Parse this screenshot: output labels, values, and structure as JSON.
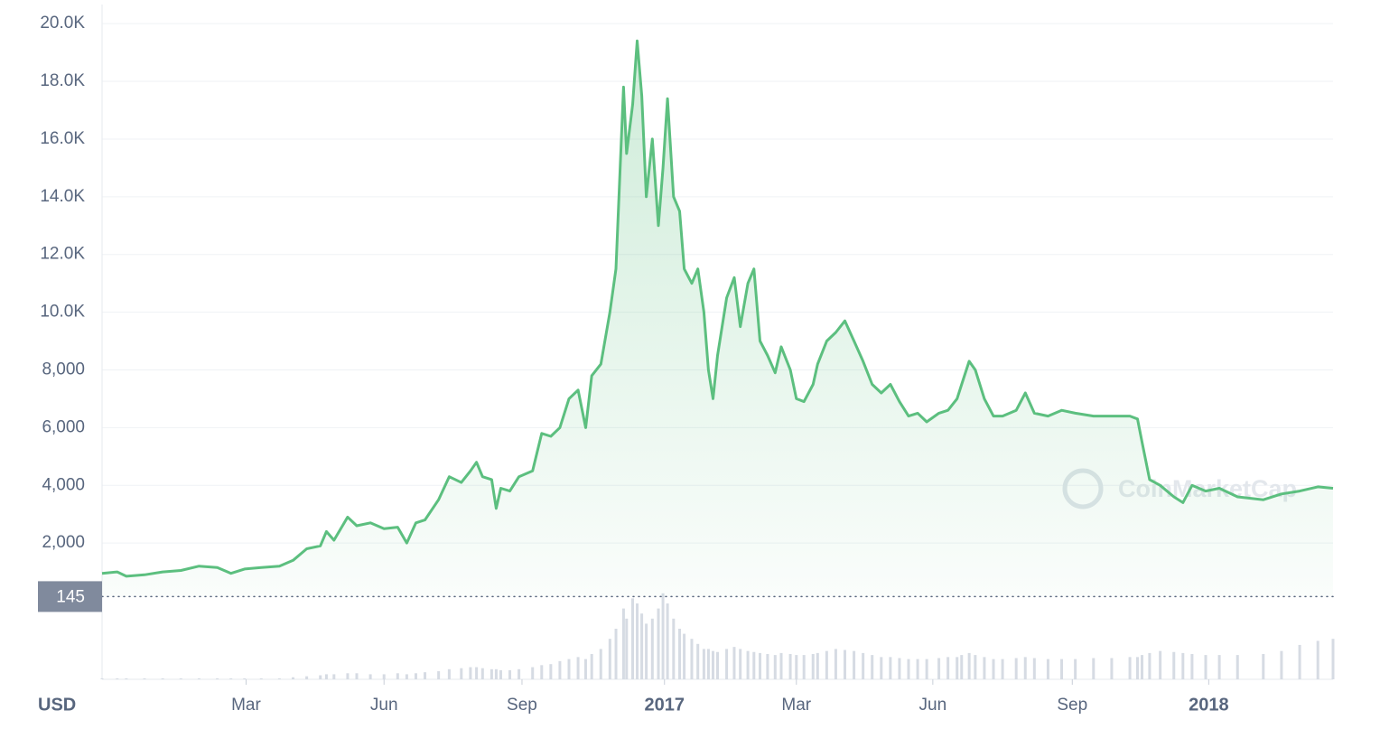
{
  "chart_data": {
    "type": "line",
    "currency_label": "USD",
    "watermark": "CoinMarketCap",
    "color": "#5cbf7f",
    "x": [
      0,
      10,
      16,
      28,
      40,
      52,
      64,
      76,
      85,
      94,
      105,
      117,
      126,
      135,
      144,
      148,
      153,
      162,
      168,
      177,
      186,
      195,
      201,
      207,
      213,
      222,
      229,
      237,
      243,
      247,
      251,
      257,
      260,
      263,
      269,
      275,
      284,
      290,
      296,
      302,
      308,
      314,
      319,
      323,
      329,
      335,
      339,
      344,
      346,
      350,
      353,
      356,
      359,
      363,
      367,
      370,
      373,
      377,
      381,
      384,
      389,
      393,
      397,
      400,
      403,
      406,
      412,
      417,
      421,
      426,
      430,
      434,
      439,
      444,
      448,
      454,
      458,
      463,
      469,
      472,
      478,
      484,
      490,
      496,
      502,
      508,
      514,
      520,
      526,
      532,
      538,
      544,
      552,
      558,
      564,
      567,
      572,
      576,
      582,
      588,
      594,
      603,
      609,
      615,
      624,
      633,
      642,
      654,
      666,
      678,
      683,
      686,
      691,
      698,
      707,
      713,
      719,
      728,
      737,
      749,
      766,
      778,
      790,
      802,
      812
    ],
    "values": [
      950,
      1000,
      850,
      900,
      1000,
      1050,
      1200,
      1150,
      950,
      1100,
      1150,
      1200,
      1400,
      1800,
      1900,
      2400,
      2100,
      2900,
      2600,
      2700,
      2500,
      2550,
      2000,
      2700,
      2800,
      3500,
      4300,
      4100,
      4500,
      4800,
      4300,
      4200,
      3200,
      3900,
      3800,
      4300,
      4500,
      5800,
      5700,
      6000,
      7000,
      7300,
      6000,
      7800,
      8200,
      10000,
      11500,
      17800,
      15500,
      17200,
      19400,
      17500,
      14000,
      16000,
      13000,
      15000,
      17400,
      14000,
      13500,
      11500,
      11000,
      11500,
      10000,
      8000,
      7000,
      8500,
      10500,
      11200,
      9500,
      11000,
      11500,
      9000,
      8500,
      7900,
      8800,
      8000,
      7000,
      6900,
      7500,
      8200,
      9000,
      9300,
      9700,
      9000,
      8300,
      7500,
      7200,
      7500,
      6900,
      6400,
      6500,
      6200,
      6500,
      6600,
      7000,
      7500,
      8300,
      8000,
      7000,
      6400,
      6400,
      6600,
      7200,
      6500,
      6400,
      6600,
      6500,
      6400,
      6400,
      6400,
      6300,
      5500,
      4200,
      4000,
      3600,
      3400,
      4000,
      3800,
      3900,
      3600,
      3500,
      3700,
      3800,
      3950,
      3900
    ],
    "volume": [
      1,
      1,
      1,
      1,
      1,
      1,
      1,
      1,
      1,
      1,
      1,
      1,
      2,
      3,
      4,
      5,
      5,
      6,
      6,
      5,
      5,
      6,
      5,
      6,
      7,
      8,
      10,
      11,
      12,
      12,
      11,
      10,
      10,
      9,
      9,
      10,
      12,
      14,
      15,
      18,
      20,
      22,
      20,
      25,
      30,
      40,
      50,
      70,
      60,
      80,
      75,
      65,
      55,
      60,
      70,
      85,
      75,
      60,
      50,
      45,
      40,
      35,
      30,
      30,
      28,
      27,
      30,
      32,
      30,
      28,
      27,
      26,
      25,
      24,
      26,
      25,
      24,
      24,
      25,
      26,
      28,
      30,
      29,
      28,
      26,
      24,
      22,
      22,
      21,
      20,
      20,
      20,
      21,
      22,
      22,
      24,
      26,
      24,
      22,
      20,
      20,
      21,
      22,
      21,
      20,
      20,
      20,
      21,
      21,
      22,
      22,
      24,
      26,
      28,
      27,
      26,
      25,
      24,
      24,
      24,
      25,
      28,
      34,
      38,
      40
    ],
    "xlim": [
      0,
      812
    ],
    "xticks": [
      {
        "value": 95,
        "label": "Mar"
      },
      {
        "value": 186,
        "label": "Jun"
      },
      {
        "value": 277,
        "label": "Sep"
      },
      {
        "value": 371,
        "label": "2017"
      },
      {
        "value": 458,
        "label": "Mar"
      },
      {
        "value": 548,
        "label": "Jun"
      },
      {
        "value": 640,
        "label": "Sep"
      },
      {
        "value": 730,
        "label": "2018"
      }
    ],
    "ylim": [
      145,
      20600
    ],
    "yticks": [
      {
        "value": 2000,
        "label": "2,000"
      },
      {
        "value": 4000,
        "label": "4,000"
      },
      {
        "value": 6000,
        "label": "6,000"
      },
      {
        "value": 8000,
        "label": "8,000"
      },
      {
        "value": 10000,
        "label": "10.0K"
      },
      {
        "value": 12000,
        "label": "12.0K"
      },
      {
        "value": 14000,
        "label": "14.0K"
      },
      {
        "value": 16000,
        "label": "16.0K"
      },
      {
        "value": 18000,
        "label": "18.0K"
      },
      {
        "value": 20000,
        "label": "20.0K"
      }
    ],
    "baseline_value": 145,
    "volume_lim": [
      0,
      100
    ],
    "grid": true
  }
}
